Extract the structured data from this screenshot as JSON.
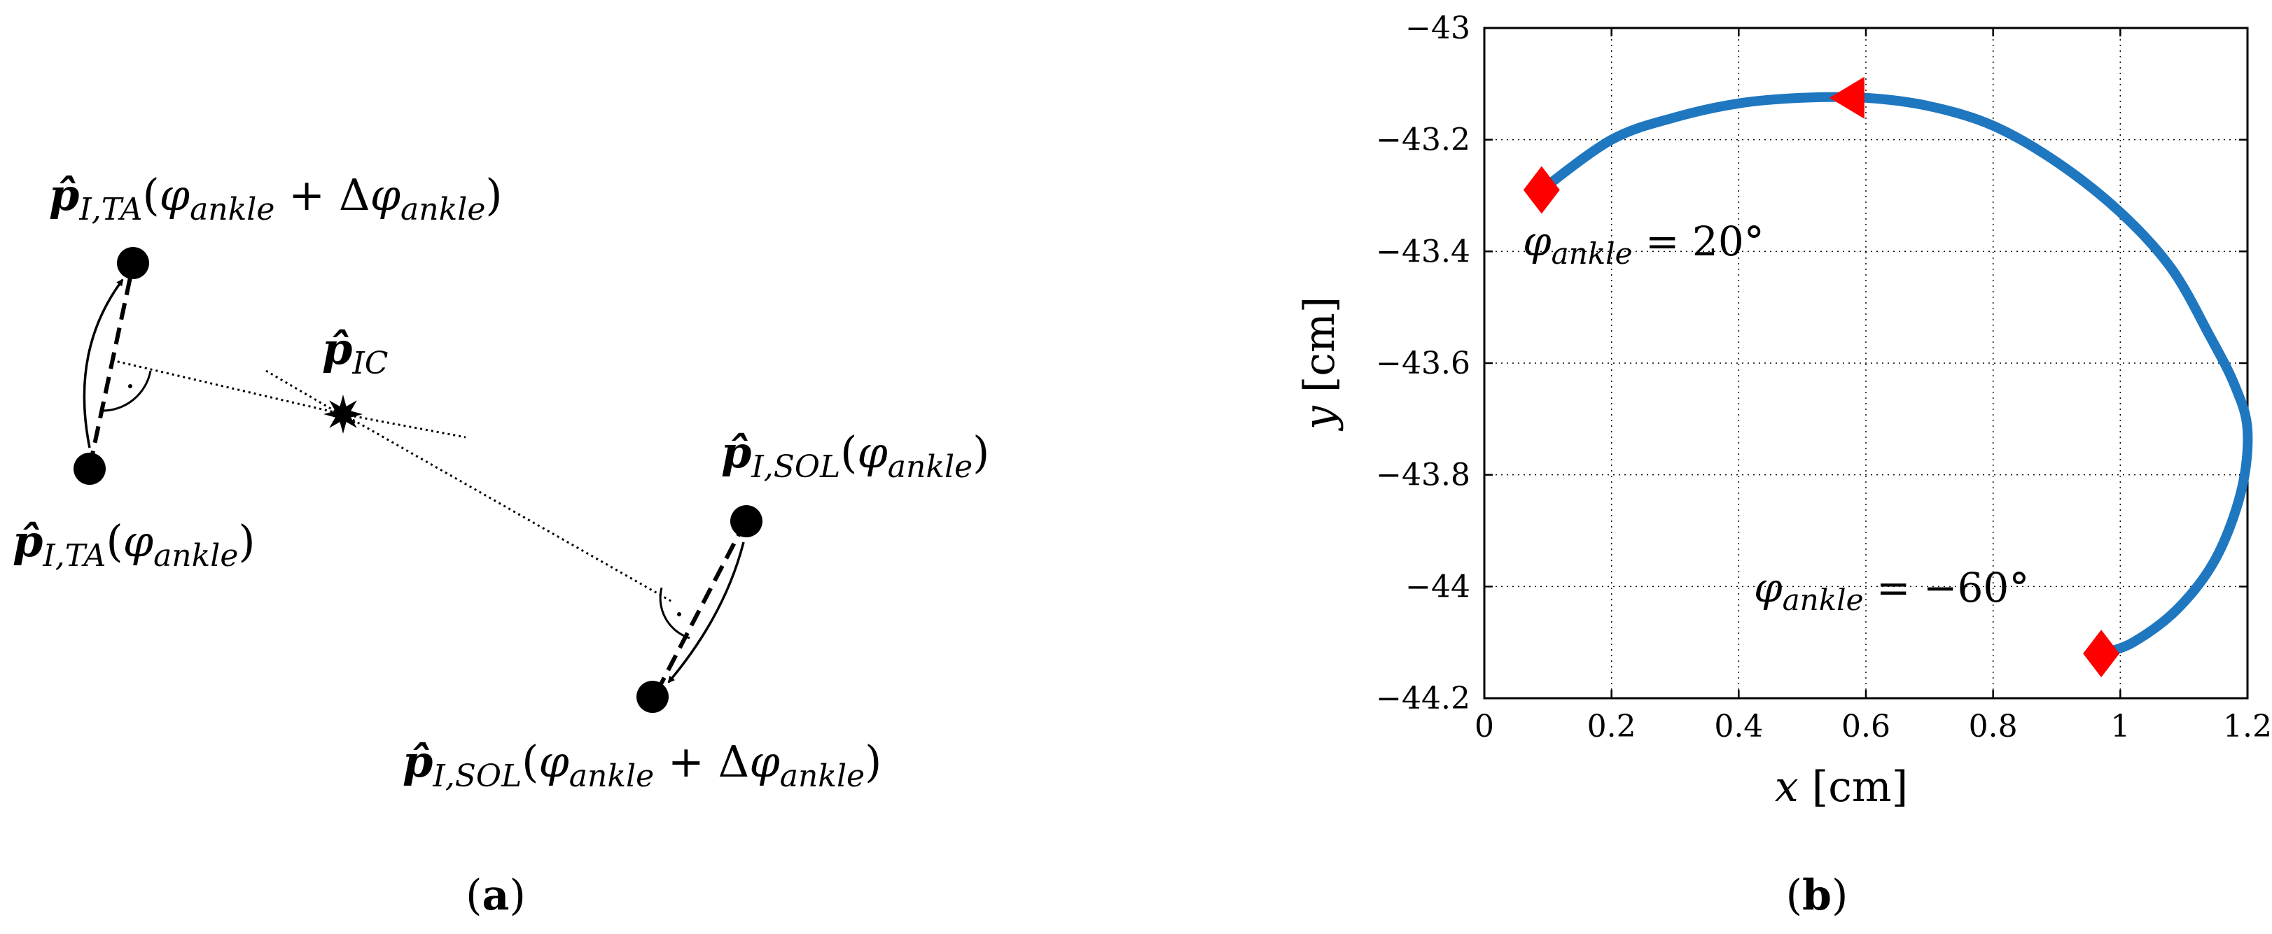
{
  "panel_a": {
    "label_prefix": "(",
    "label_letter": "a",
    "label_suffix": ")",
    "p_sym": "p̂",
    "ta_sub": "I,TA",
    "sol_sub": "I,SOL",
    "ic_sub": "IC",
    "phi": "φ",
    "phi_sub": "ankle",
    "delta": "Δ",
    "plus": "+",
    "lparen": "(",
    "rparen": ")"
  },
  "panel_b": {
    "label_prefix": "(",
    "label_letter": "b",
    "label_suffix": ")",
    "annotation_start": {
      "phi": "φ",
      "sub": "ankle",
      "rest": " = 20°"
    },
    "annotation_end": {
      "phi": "φ",
      "sub": "ankle",
      "rest": " = −60°"
    }
  },
  "chart_data": {
    "type": "line",
    "title": "",
    "xlabel_var": "x",
    "xlabel_unit": " [cm]",
    "ylabel_var": "y",
    "ylabel_unit": " [cm]",
    "xlim": [
      0,
      1.2
    ],
    "ylim": [
      -44.2,
      -43
    ],
    "xticks": [
      0,
      0.2,
      0.4,
      0.6,
      0.8,
      1,
      1.2
    ],
    "xtick_labels": [
      "0",
      "0.2",
      "0.4",
      "0.6",
      "0.8",
      "1",
      "1.2"
    ],
    "yticks": [
      -44.2,
      -44,
      -43.8,
      -43.6,
      -43.4,
      -43.2,
      -43
    ],
    "ytick_labels": [
      "−44.2",
      "−44",
      "−43.8",
      "−43.6",
      "−43.4",
      "−43.2",
      "−43"
    ],
    "grid": true,
    "series": [
      {
        "color": "#1f77c0",
        "x": [
          0.09,
          0.2,
          0.3,
          0.4,
          0.5,
          0.6,
          0.7,
          0.8,
          0.9,
          1.0,
          1.08,
          1.14,
          1.18,
          1.2,
          1.19,
          1.15,
          1.09,
          1.02,
          0.97
        ],
        "y": [
          -43.29,
          -43.2,
          -43.16,
          -43.135,
          -43.125,
          -43.125,
          -43.14,
          -43.175,
          -43.24,
          -43.33,
          -43.43,
          -43.55,
          -43.64,
          -43.72,
          -43.83,
          -43.95,
          -44.04,
          -44.1,
          -44.12
        ]
      }
    ],
    "markers": [
      {
        "shape": "diamond",
        "x": 0.09,
        "y": -43.29,
        "color": "#ff0000"
      },
      {
        "shape": "triangle-left",
        "x": 0.57,
        "y": -43.125,
        "color": "#ff0000"
      },
      {
        "shape": "diamond",
        "x": 0.97,
        "y": -44.12,
        "color": "#ff0000"
      }
    ]
  }
}
